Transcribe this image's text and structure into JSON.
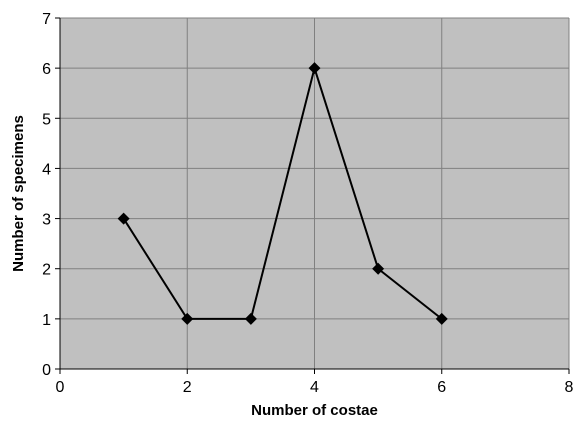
{
  "chart_data": {
    "type": "line",
    "title": "",
    "xlabel": "Number of costae",
    "ylabel": "Number of specimens",
    "xlim": [
      0,
      8
    ],
    "ylim": [
      0,
      7
    ],
    "xticks": [
      0,
      2,
      4,
      6,
      8
    ],
    "yticks": [
      0,
      1,
      2,
      3,
      4,
      5,
      6,
      7
    ],
    "grid": true,
    "legend": "none",
    "marker": "diamond",
    "series": [
      {
        "x": [
          1,
          2,
          3,
          4,
          5,
          6
        ],
        "y": [
          3,
          1,
          1,
          6,
          2,
          1
        ]
      }
    ],
    "colors": {
      "plot_background": "#c0c0c0",
      "gridline": "#808080",
      "line": "#000000",
      "marker": "#000000"
    }
  }
}
